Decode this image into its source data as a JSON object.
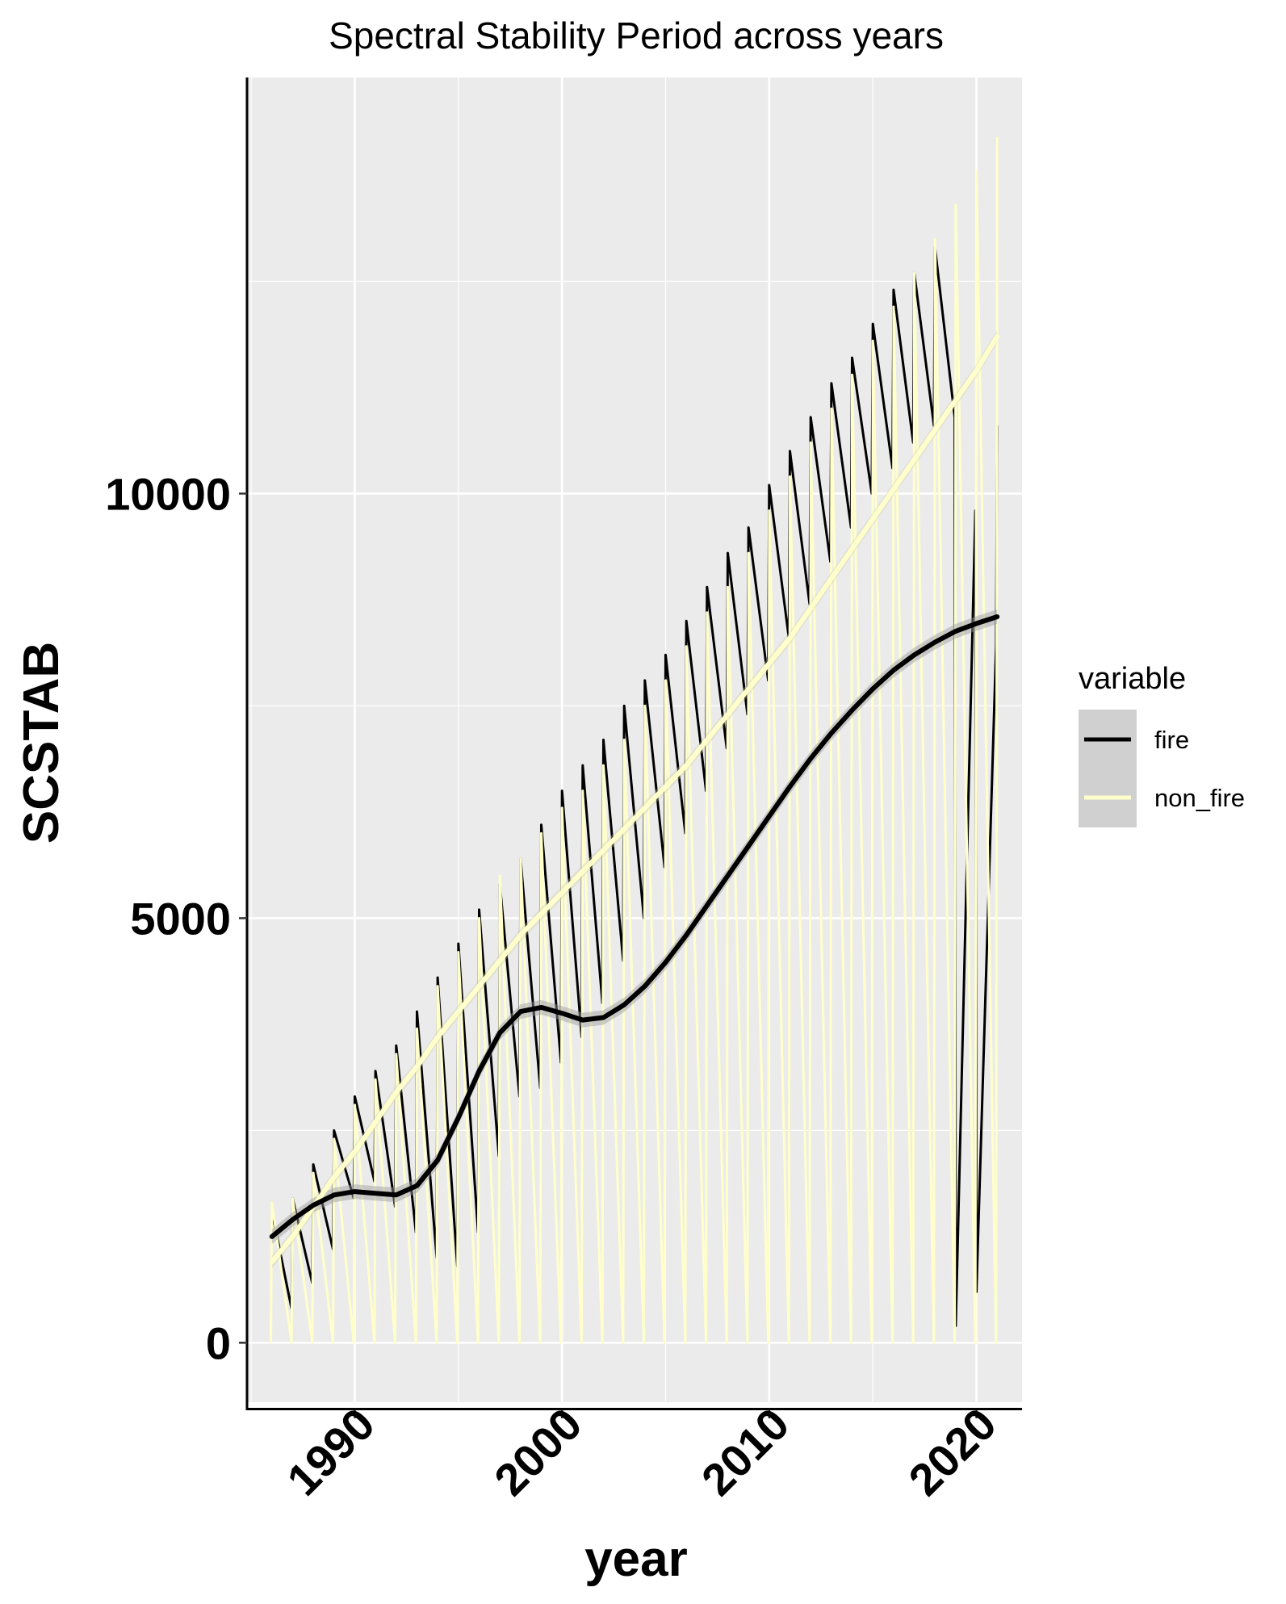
{
  "chart_data": {
    "type": "line",
    "title": "Spectral Stability Period across years",
    "xlabel": "year",
    "ylabel": "SCSTAB",
    "xlim": [
      1984.8,
      2022.2
    ],
    "ylim": [
      -700,
      14900
    ],
    "x_ticks": [
      1990,
      2000,
      2010,
      2020
    ],
    "x_tick_labels": [
      "1990",
      "2000",
      "2010",
      "2020"
    ],
    "y_ticks": [
      0,
      5000,
      10000
    ],
    "y_tick_labels": [
      "0",
      "5000",
      "10000"
    ],
    "y_minor_gridlines": [
      2500,
      7500,
      12500
    ],
    "x_minor_gridlines": [
      1985,
      1995,
      2005,
      2015
    ],
    "grid": true,
    "background": "#EBEBEB",
    "legend": {
      "title": "variable",
      "position": "right",
      "entries": [
        {
          "label": "fire",
          "color": "#000000"
        },
        {
          "label": "non_fire",
          "color": "#FFFFCC"
        }
      ]
    },
    "series": [
      {
        "name": "fire",
        "color": "#000000",
        "raw": {
          "x": [
            1986,
            1986.95,
            1987,
            1987.95,
            1988,
            1988.95,
            1989,
            1989.95,
            1990,
            1990.95,
            1991,
            1991.95,
            1992,
            1992.95,
            1993,
            1993.95,
            1994,
            1994.95,
            1995,
            1995.95,
            1996,
            1996.95,
            1997,
            1997.95,
            1998,
            1998.95,
            1999,
            1999.95,
            2000,
            2000.95,
            2001,
            2001.95,
            2002,
            2002.95,
            2003,
            2003.95,
            2004,
            2004.95,
            2005,
            2005.95,
            2006,
            2006.95,
            2007,
            2007.95,
            2008,
            2008.95,
            2009,
            2009.95,
            2010,
            2010.95,
            2011,
            2011.95,
            2012,
            2012.95,
            2013,
            2013.95,
            2014,
            2014.95,
            2015,
            2015.95,
            2016,
            2016.95,
            2017,
            2017.95,
            2018,
            2018.95,
            2019,
            2019.95,
            2020,
            2020.95,
            2021
          ],
          "y": [
            1550,
            400,
            1700,
            700,
            2100,
            1100,
            2500,
            1700,
            2900,
            1900,
            3200,
            1600,
            3500,
            1300,
            3900,
            1000,
            4300,
            900,
            4700,
            1300,
            5100,
            2200,
            5400,
            2900,
            5700,
            3000,
            6100,
            3300,
            6500,
            3600,
            6800,
            4000,
            7100,
            4500,
            7500,
            5000,
            7800,
            5600,
            8100,
            6000,
            8500,
            6500,
            8900,
            7000,
            9300,
            7400,
            9600,
            7800,
            10100,
            8300,
            10500,
            8700,
            10900,
            9200,
            11300,
            9600,
            11600,
            10000,
            12000,
            10300,
            12400,
            10600,
            12600,
            10800,
            12900,
            10900,
            200,
            9800,
            600,
            8200,
            10800
          ]
        },
        "smooth": {
          "x": [
            1986,
            1987,
            1988,
            1989,
            1990,
            1991,
            1992,
            1993,
            1994,
            1995,
            1996,
            1997,
            1998,
            1999,
            2000,
            2001,
            2002,
            2003,
            2004,
            2005,
            2006,
            2007,
            2008,
            2009,
            2010,
            2011,
            2012,
            2013,
            2014,
            2015,
            2016,
            2017,
            2018,
            2019,
            2020,
            2021
          ],
          "y": [
            1250,
            1450,
            1620,
            1740,
            1780,
            1760,
            1740,
            1850,
            2150,
            2650,
            3200,
            3650,
            3900,
            3950,
            3880,
            3800,
            3830,
            3980,
            4200,
            4480,
            4800,
            5150,
            5500,
            5850,
            6200,
            6550,
            6880,
            7180,
            7450,
            7700,
            7920,
            8100,
            8250,
            8380,
            8470,
            8550
          ]
        }
      },
      {
        "name": "non_fire",
        "color": "#FFFFCC",
        "raw": {
          "x": [
            1985.95,
            1986,
            1986.95,
            1987,
            1987.95,
            1988,
            1988.95,
            1989,
            1989.95,
            1990,
            1990.95,
            1991,
            1991.95,
            1992,
            1992.95,
            1993,
            1993.95,
            1994,
            1994.95,
            1995,
            1995.95,
            1996,
            1996.95,
            1997,
            1997.95,
            1998,
            1998.95,
            1999,
            1999.95,
            2000,
            2000.95,
            2001,
            2001.95,
            2002,
            2002.95,
            2003,
            2003.95,
            2004,
            2004.95,
            2005,
            2005.95,
            2006,
            2006.95,
            2007,
            2007.95,
            2008,
            2008.95,
            2009,
            2009.95,
            2010,
            2010.95,
            2011,
            2011.95,
            2012,
            2012.95,
            2013,
            2013.95,
            2014,
            2014.95,
            2015,
            2015.95,
            2016,
            2016.95,
            2017,
            2017.95,
            2018,
            2018.95,
            2019,
            2019.95,
            2020,
            2020.95,
            2021
          ],
          "y": [
            0,
            1650,
            0,
            1700,
            0,
            2000,
            0,
            2400,
            0,
            2800,
            0,
            3100,
            0,
            3400,
            0,
            3700,
            0,
            4200,
            0,
            4600,
            0,
            5000,
            0,
            5500,
            0,
            5700,
            0,
            6000,
            0,
            6300,
            0,
            6500,
            0,
            6800,
            0,
            7100,
            0,
            7500,
            0,
            7800,
            0,
            8200,
            0,
            8600,
            0,
            8900,
            0,
            9300,
            0,
            9800,
            0,
            10200,
            0,
            10600,
            0,
            11000,
            0,
            11400,
            0,
            11800,
            0,
            12200,
            0,
            12600,
            0,
            13000,
            0,
            13400,
            0,
            13800,
            0,
            14200
          ]
        },
        "smooth": {
          "x": [
            1986,
            1987,
            1988,
            1989,
            1990,
            1991,
            1992,
            1993,
            1994,
            1995,
            1996,
            1997,
            1998,
            1999,
            2000,
            2001,
            2002,
            2003,
            2004,
            2005,
            2006,
            2007,
            2008,
            2009,
            2010,
            2011,
            2012,
            2013,
            2014,
            2015,
            2016,
            2017,
            2018,
            2019,
            2020,
            2021
          ],
          "y": [
            950,
            1250,
            1600,
            1950,
            2250,
            2600,
            2950,
            3250,
            3600,
            3900,
            4200,
            4500,
            4800,
            5050,
            5300,
            5550,
            5800,
            6050,
            6300,
            6550,
            6800,
            7100,
            7400,
            7700,
            8000,
            8300,
            8650,
            9000,
            9350,
            9700,
            10050,
            10400,
            10750,
            11100,
            11450,
            11850
          ]
        }
      }
    ]
  }
}
